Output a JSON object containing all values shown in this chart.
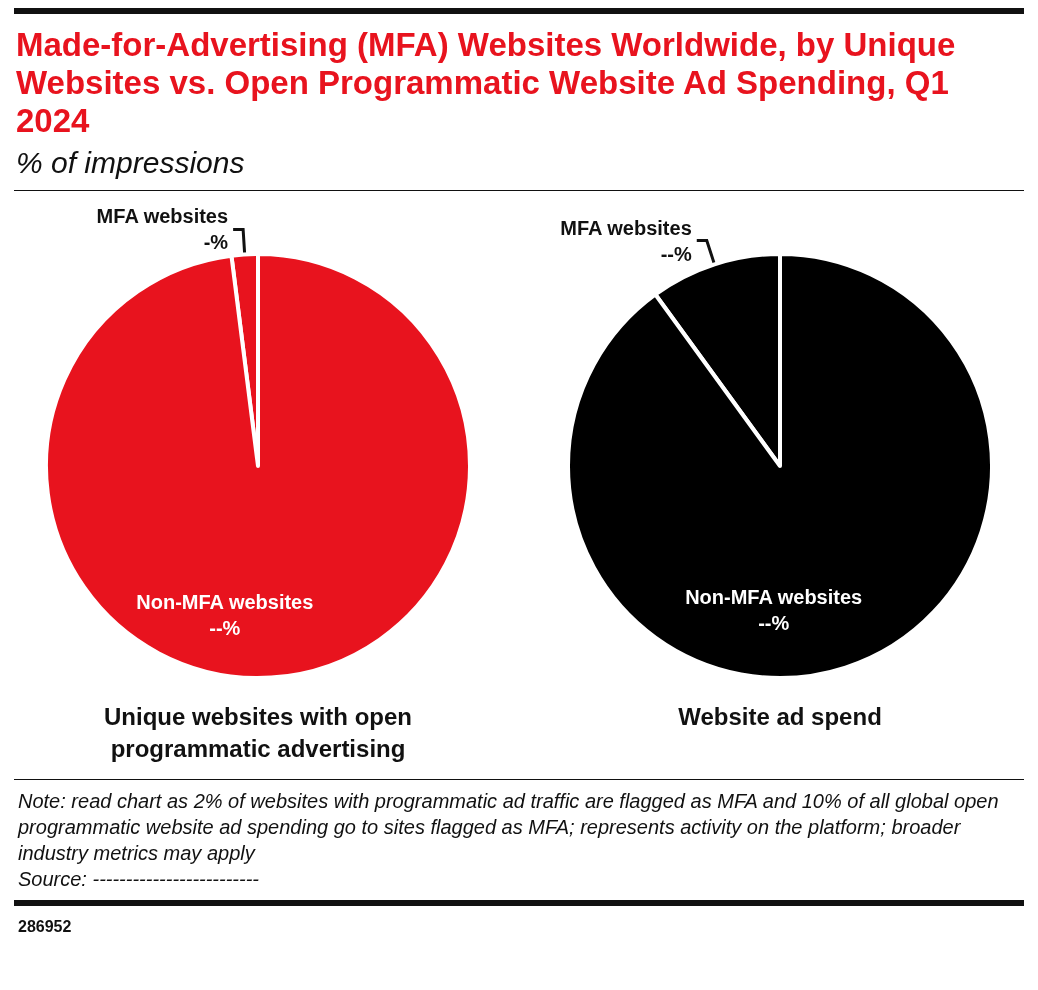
{
  "chart_data": [
    {
      "type": "pie",
      "title": "Made-for-Advertising (MFA) Websites Worldwide, by Unique Websites vs. Open Programmatic Website Ad Spending, Q1 2024",
      "subtitle": "% of impressions",
      "xlabel": "Unique websites with open programmatic advertising",
      "categories": [
        "MFA websites",
        "Non-MFA websites"
      ],
      "values": [
        2,
        98
      ],
      "value_labels": [
        "-%",
        "--%"
      ],
      "colors": [
        "#e8131e",
        "#e8131e"
      ],
      "legend": false,
      "annotations": [
        "Note: read chart as 2% of websites with programmatic ad traffic are flagged as MFA and 10% of all global open programmatic website ad spending go to sites flagged as MFA; represents activity on the platform; broader industry metrics may apply",
        "Source: -------------------------",
        "286952"
      ]
    },
    {
      "type": "pie",
      "xlabel": "Website ad spend",
      "categories": [
        "MFA websites",
        "Non-MFA websites"
      ],
      "values": [
        10,
        90
      ],
      "value_labels": [
        "--%",
        "--%"
      ],
      "colors": [
        "#000000",
        "#000000"
      ],
      "legend": false
    }
  ]
}
